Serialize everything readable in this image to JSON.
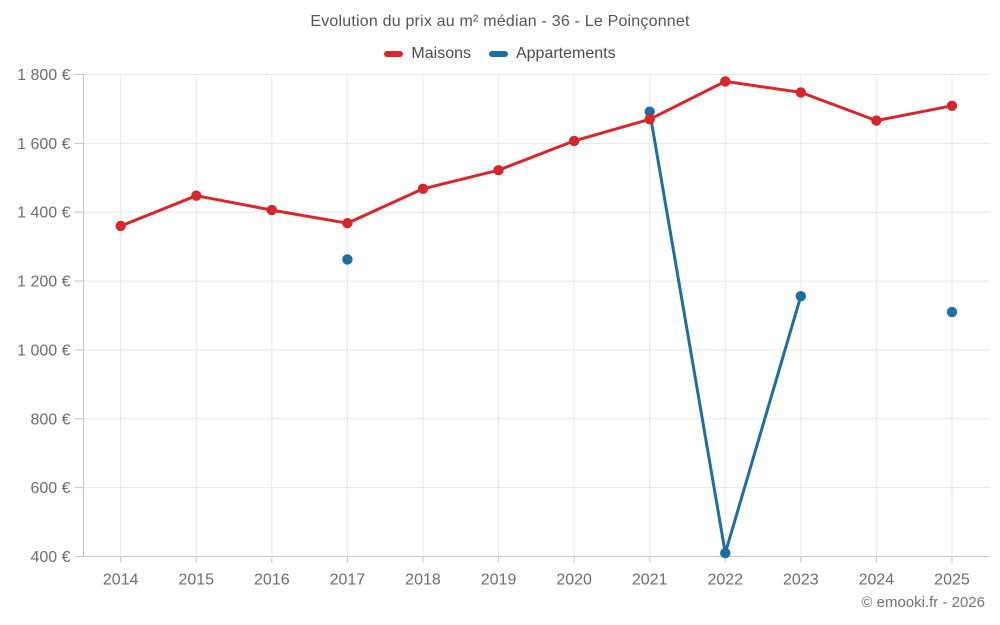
{
  "page": {
    "footer": "© emooki.fr - 2026"
  },
  "colors": {
    "maisons": "#d7272d",
    "appartements": "#1c6ea4",
    "grid": "#e8e8e8",
    "axis": "#c6c6c6",
    "tick_label": "#6e6e6e",
    "title_text": "#555555",
    "legend_text": "#4b4b4b",
    "footer_text": "#737373",
    "background": "#ffffff"
  },
  "chart_data": {
    "type": "line",
    "title": "Evolution du prix au m² médian - 36 - Le Poinçonnet",
    "categories": [
      2014,
      2015,
      2016,
      2017,
      2018,
      2019,
      2020,
      2021,
      2022,
      2023,
      2024,
      2025
    ],
    "series": [
      {
        "name": "Maisons",
        "color": "#d7272d",
        "values": [
          1360,
          1448,
          1406,
          1368,
          1468,
          1522,
          1607,
          1670,
          1780,
          1748,
          1666,
          1709
        ]
      },
      {
        "name": "Appartements",
        "color": "#1c6ea4",
        "values": [
          null,
          null,
          null,
          1263,
          null,
          null,
          null,
          1692,
          410,
          1156,
          null,
          1110
        ]
      }
    ],
    "ylim": [
      400,
      1800
    ],
    "yticks": [
      {
        "value": 400,
        "label": "400 €"
      },
      {
        "value": 600,
        "label": "600 €"
      },
      {
        "value": 800,
        "label": "800 €"
      },
      {
        "value": 1000,
        "label": "1 000 €"
      },
      {
        "value": 1200,
        "label": "1 200 €"
      },
      {
        "value": 1400,
        "label": "1 400 €"
      },
      {
        "value": 1600,
        "label": "1 600 €"
      },
      {
        "value": 1800,
        "label": "1 800 €"
      }
    ],
    "currency": "€",
    "grid": true,
    "legend_position": "top",
    "null_policy": "gap"
  }
}
